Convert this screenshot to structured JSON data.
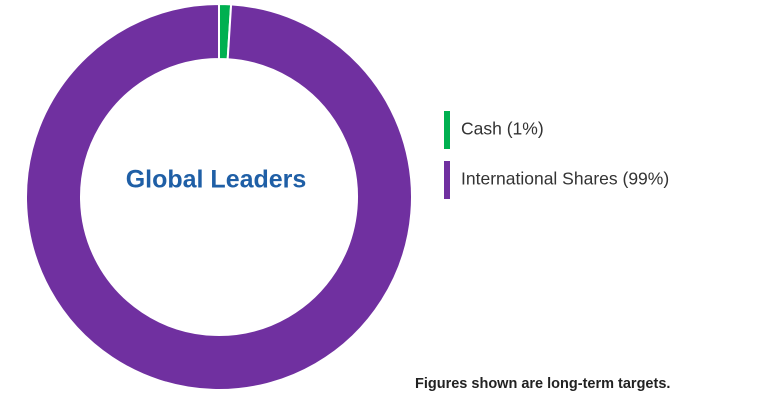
{
  "chart_data": {
    "type": "donut",
    "center_label": "Global Leaders",
    "categories": [
      "Cash (1%)",
      "International Shares (99%)"
    ],
    "values": [
      1,
      99
    ],
    "colors": [
      "#00b050",
      "#7030a0"
    ],
    "note": "Figures shown are long-term targets."
  }
}
